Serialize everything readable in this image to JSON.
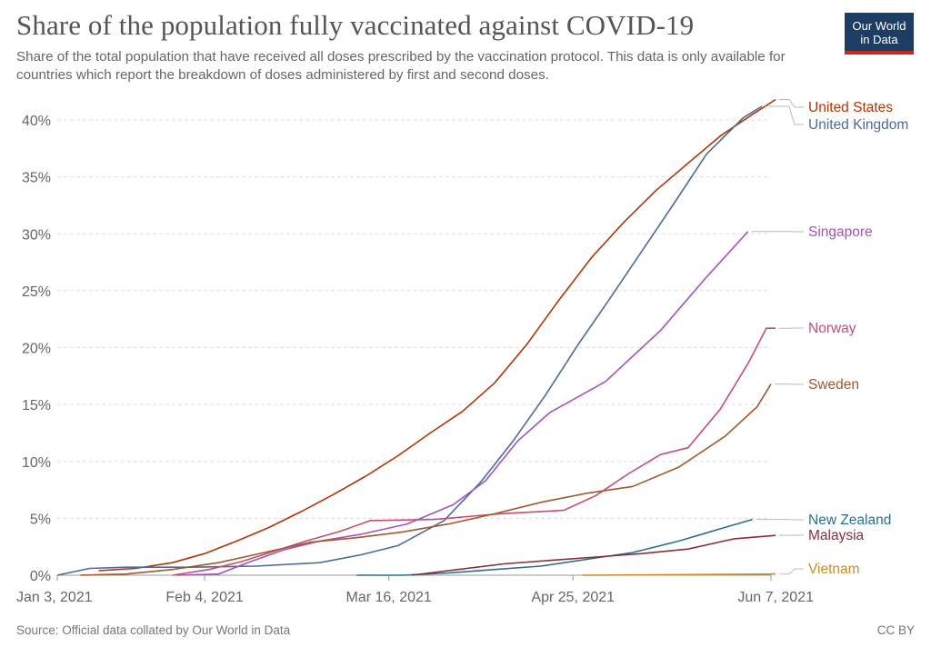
{
  "header": {
    "title": "Share of the population fully vaccinated against COVID-19",
    "subtitle": "Share of the total population that have received all doses prescribed by the vaccination protocol. This data is only available for countries which report the breakdown of doses administered by first and second doses.",
    "logo_line1": "Our World",
    "logo_line2": "in Data"
  },
  "footer": {
    "source": "Source: Official data collated by Our World in Data",
    "license": "CC BY"
  },
  "chart_data": {
    "type": "line",
    "title": "Share of the population fully vaccinated against COVID-19",
    "xlabel": "",
    "ylabel": "",
    "x_ticks": [
      "Jan 3, 2021",
      "Feb 4, 2021",
      "Mar 16, 2021",
      "Apr 25, 2021",
      "Jun 7, 2021"
    ],
    "y_ticks": [
      "0%",
      "5%",
      "10%",
      "15%",
      "20%",
      "25%",
      "30%",
      "35%",
      "40%"
    ],
    "xlim": [
      "2021-01-03",
      "2021-06-07"
    ],
    "ylim": [
      0,
      42
    ],
    "grid": true,
    "legend": "right-end-labels",
    "series": [
      {
        "name": "United States",
        "color": "#b13507",
        "points": [
          [
            "2021-01-12",
            0.4
          ],
          [
            "2021-01-20",
            0.6
          ],
          [
            "2021-01-28",
            1.1
          ],
          [
            "2021-02-04",
            1.9
          ],
          [
            "2021-02-11",
            3.0
          ],
          [
            "2021-02-18",
            4.2
          ],
          [
            "2021-02-25",
            5.6
          ],
          [
            "2021-03-04",
            7.1
          ],
          [
            "2021-03-11",
            8.7
          ],
          [
            "2021-03-18",
            10.5
          ],
          [
            "2021-03-25",
            12.5
          ],
          [
            "2021-04-01",
            14.4
          ],
          [
            "2021-04-08",
            16.9
          ],
          [
            "2021-04-15",
            20.3
          ],
          [
            "2021-04-22",
            24.2
          ],
          [
            "2021-04-29",
            27.9
          ],
          [
            "2021-05-06",
            31.0
          ],
          [
            "2021-05-13",
            33.8
          ],
          [
            "2021-05-20",
            36.2
          ],
          [
            "2021-05-27",
            38.6
          ],
          [
            "2021-06-03",
            40.5
          ],
          [
            "2021-06-08",
            41.8
          ]
        ]
      },
      {
        "name": "United Kingdom",
        "color": "#4c6a9c",
        "points": [
          [
            "2021-01-03",
            0.0
          ],
          [
            "2021-01-10",
            0.6
          ],
          [
            "2021-01-18",
            0.7
          ],
          [
            "2021-02-01",
            0.7
          ],
          [
            "2021-02-15",
            0.8
          ],
          [
            "2021-03-01",
            1.1
          ],
          [
            "2021-03-10",
            1.8
          ],
          [
            "2021-03-18",
            2.6
          ],
          [
            "2021-03-28",
            4.8
          ],
          [
            "2021-04-05",
            8.2
          ],
          [
            "2021-04-12",
            11.8
          ],
          [
            "2021-04-19",
            15.8
          ],
          [
            "2021-04-26",
            20.2
          ],
          [
            "2021-05-03",
            24.3
          ],
          [
            "2021-05-10",
            28.5
          ],
          [
            "2021-05-17",
            32.7
          ],
          [
            "2021-05-24",
            37.0
          ],
          [
            "2021-06-01",
            40.2
          ],
          [
            "2021-06-05",
            41.2
          ]
        ]
      },
      {
        "name": "Singapore",
        "color": "#a652ba",
        "points": [
          [
            "2021-01-29",
            0.0
          ],
          [
            "2021-02-07",
            0.1
          ],
          [
            "2021-02-14",
            1.2
          ],
          [
            "2021-02-21",
            2.2
          ],
          [
            "2021-03-01",
            3.0
          ],
          [
            "2021-03-10",
            3.6
          ],
          [
            "2021-03-20",
            4.5
          ],
          [
            "2021-03-30",
            6.2
          ],
          [
            "2021-04-06",
            8.3
          ],
          [
            "2021-04-13",
            11.8
          ],
          [
            "2021-04-20",
            14.3
          ],
          [
            "2021-05-02",
            17.0
          ],
          [
            "2021-05-14",
            21.5
          ],
          [
            "2021-05-24",
            26.2
          ],
          [
            "2021-06-02",
            30.2
          ]
        ]
      },
      {
        "name": "Norway",
        "color": "#c44f73",
        "points": [
          [
            "2021-01-28",
            0.0
          ],
          [
            "2021-02-05",
            0.5
          ],
          [
            "2021-02-12",
            1.2
          ],
          [
            "2021-02-19",
            2.1
          ],
          [
            "2021-02-26",
            3.0
          ],
          [
            "2021-03-05",
            3.8
          ],
          [
            "2021-03-12",
            4.8
          ],
          [
            "2021-03-26",
            4.9
          ],
          [
            "2021-04-09",
            5.4
          ],
          [
            "2021-04-23",
            5.7
          ],
          [
            "2021-04-30",
            7.0
          ],
          [
            "2021-05-07",
            8.9
          ],
          [
            "2021-05-14",
            10.6
          ],
          [
            "2021-05-20",
            11.2
          ],
          [
            "2021-05-27",
            14.6
          ],
          [
            "2021-06-02",
            18.6
          ],
          [
            "2021-06-06",
            21.7
          ],
          [
            "2021-06-08",
            21.7
          ]
        ]
      },
      {
        "name": "Sweden",
        "color": "#a2582b",
        "points": [
          [
            "2021-01-08",
            0.0
          ],
          [
            "2021-01-18",
            0.1
          ],
          [
            "2021-01-28",
            0.5
          ],
          [
            "2021-02-07",
            1.1
          ],
          [
            "2021-02-17",
            2.0
          ],
          [
            "2021-02-27",
            2.9
          ],
          [
            "2021-03-09",
            3.3
          ],
          [
            "2021-03-19",
            3.8
          ],
          [
            "2021-03-29",
            4.5
          ],
          [
            "2021-04-08",
            5.4
          ],
          [
            "2021-04-18",
            6.4
          ],
          [
            "2021-04-28",
            7.2
          ],
          [
            "2021-05-08",
            7.8
          ],
          [
            "2021-05-18",
            9.5
          ],
          [
            "2021-05-28",
            12.2
          ],
          [
            "2021-06-04",
            14.8
          ],
          [
            "2021-06-07",
            16.8
          ]
        ]
      },
      {
        "name": "New Zealand",
        "color": "#286f8e",
        "points": [
          [
            "2021-03-09",
            0.0
          ],
          [
            "2021-03-19",
            0.0
          ],
          [
            "2021-03-29",
            0.2
          ],
          [
            "2021-04-08",
            0.5
          ],
          [
            "2021-04-18",
            0.8
          ],
          [
            "2021-04-28",
            1.4
          ],
          [
            "2021-05-08",
            2.0
          ],
          [
            "2021-05-18",
            3.0
          ],
          [
            "2021-05-28",
            4.2
          ],
          [
            "2021-06-03",
            4.9
          ]
        ]
      },
      {
        "name": "Malaysia",
        "color": "#883039",
        "points": [
          [
            "2021-03-21",
            0.0
          ],
          [
            "2021-03-31",
            0.5
          ],
          [
            "2021-04-10",
            1.0
          ],
          [
            "2021-04-20",
            1.3
          ],
          [
            "2021-04-30",
            1.6
          ],
          [
            "2021-05-10",
            1.9
          ],
          [
            "2021-05-20",
            2.3
          ],
          [
            "2021-05-30",
            3.2
          ],
          [
            "2021-06-08",
            3.5
          ]
        ]
      },
      {
        "name": "Vietnam",
        "color": "#ca8c27",
        "points": [
          [
            "2021-04-27",
            0.0
          ],
          [
            "2021-05-17",
            0.05
          ],
          [
            "2021-06-08",
            0.1
          ]
        ]
      }
    ]
  }
}
